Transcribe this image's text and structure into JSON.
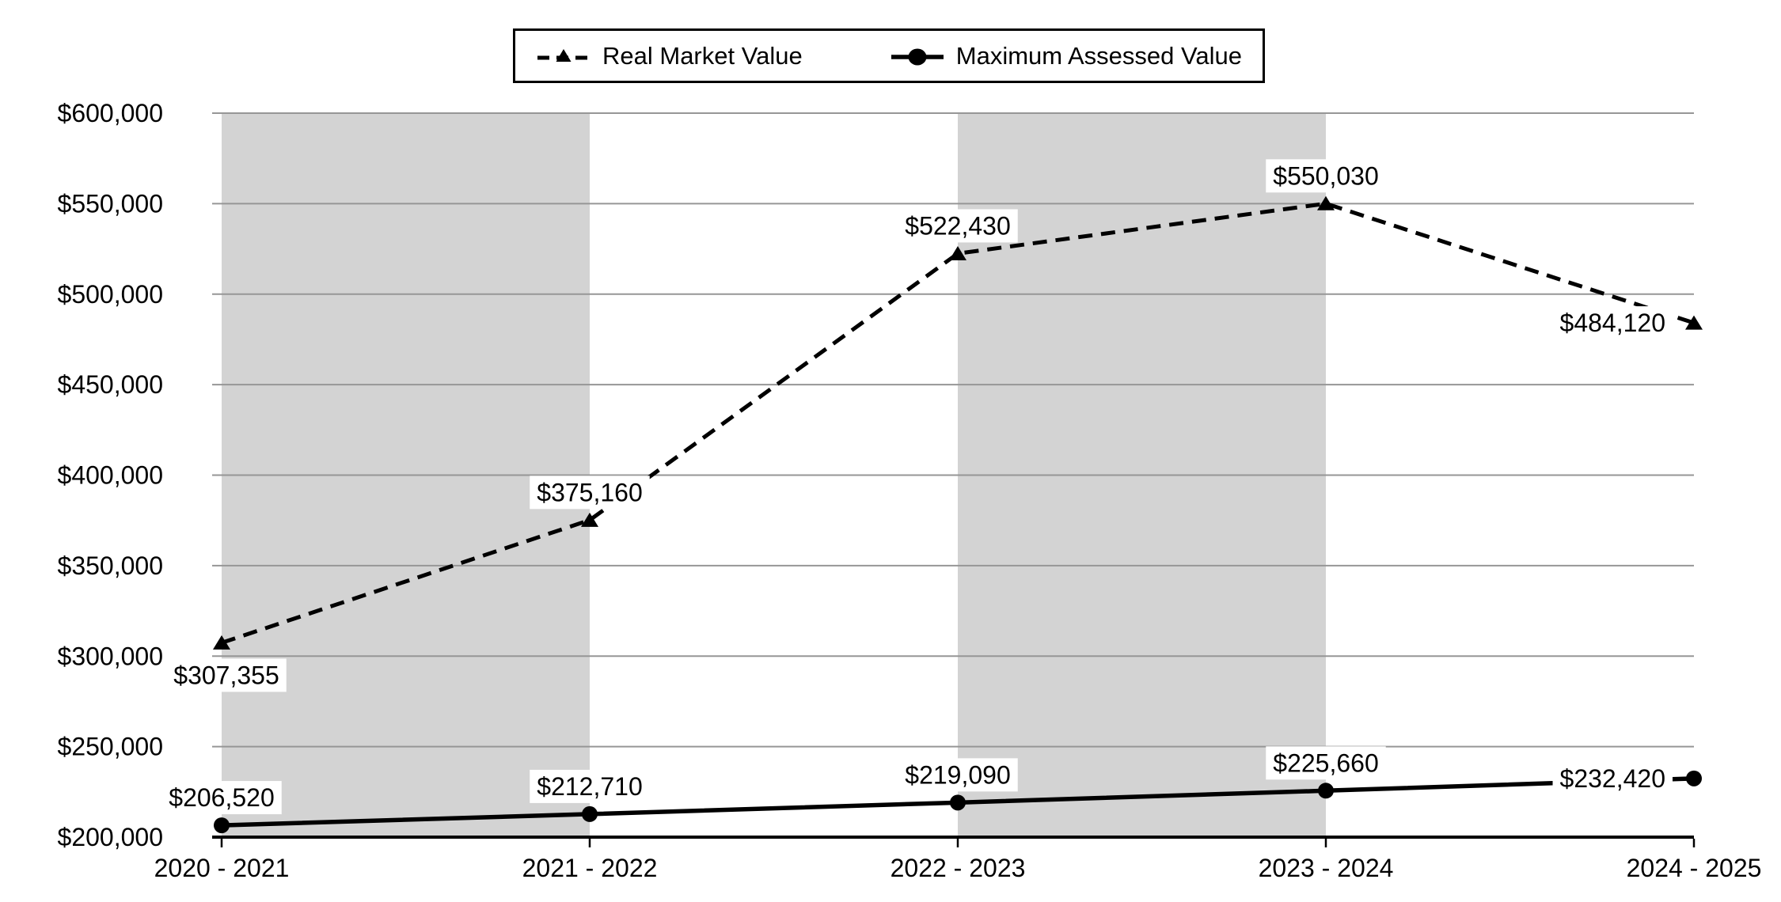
{
  "chart_data": {
    "type": "line",
    "title": "",
    "categories": [
      "2020 - 2021",
      "2021 - 2022",
      "2022 - 2023",
      "2023 - 2024",
      "2024 - 2025"
    ],
    "series": [
      {
        "name": "Real Market Value",
        "line": "dashed",
        "marker": "triangle",
        "values": [
          307355,
          375160,
          522430,
          550030,
          484120
        ],
        "labels": [
          "$307,355",
          "$375,160",
          "$522,430",
          "$550,030",
          "$484,120"
        ],
        "label_pos": [
          "below",
          "above",
          "above",
          "above",
          "left"
        ]
      },
      {
        "name": "Maximum Assessed Value",
        "line": "solid",
        "marker": "circle",
        "values": [
          206520,
          212710,
          219090,
          225660,
          232420
        ],
        "labels": [
          "$206,520",
          "$212,710",
          "$219,090",
          "$225,660",
          "$232,420"
        ],
        "label_pos": [
          "above",
          "above",
          "above",
          "above",
          "left"
        ]
      }
    ],
    "y_axis": {
      "min": 200000,
      "max": 600000,
      "step": 50000,
      "tick_labels": [
        "$200,000",
        "$250,000",
        "$300,000",
        "$350,000",
        "$400,000",
        "$450,000",
        "$500,000",
        "$550,000",
        "$600,000"
      ]
    },
    "shaded_band_intervals": [
      [
        0,
        1
      ],
      [
        2,
        3
      ]
    ],
    "grid": true,
    "legend_position": "top"
  },
  "colors": {
    "background": "#FFFFFF",
    "band": "#D3D3D3",
    "gridline": "#969696",
    "series": "#000000",
    "axis": "#000000",
    "label_bg": "#FFFFFF",
    "text": "#000000"
  }
}
